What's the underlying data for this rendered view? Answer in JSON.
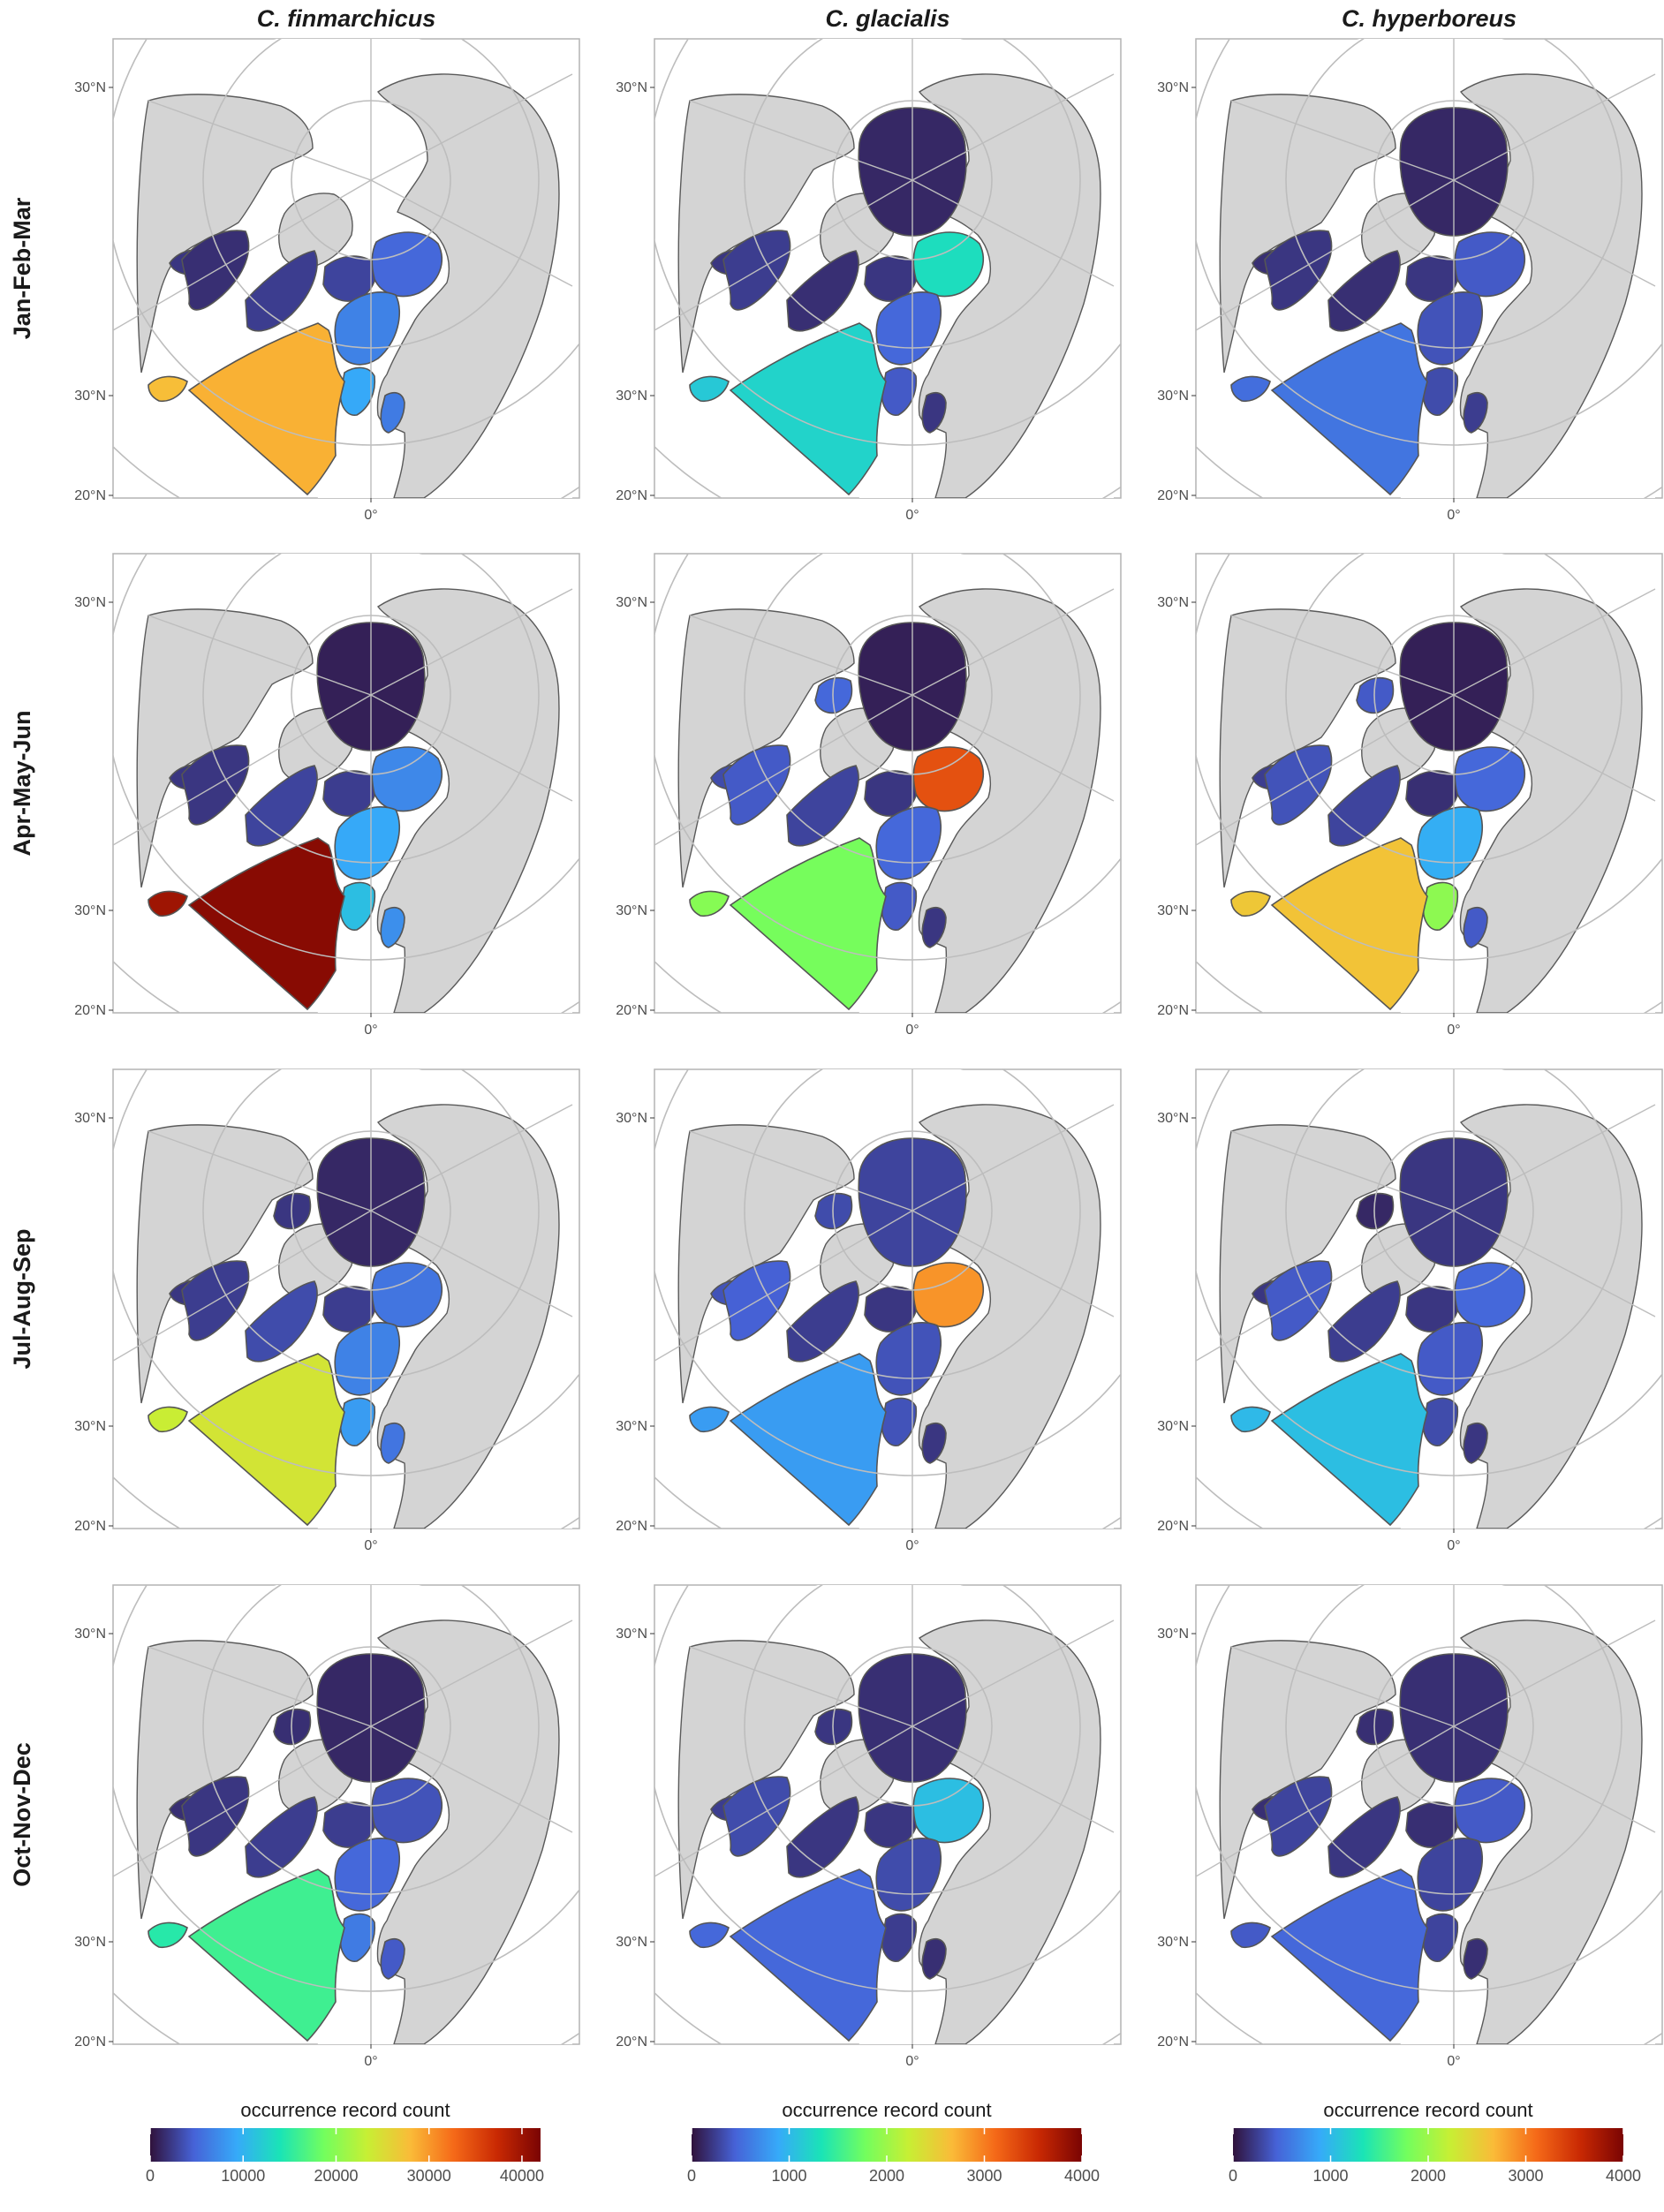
{
  "colors": {
    "land": "#d4d4d4",
    "land_stroke": "#5a5a5a",
    "grid": "#bdbdbd",
    "panel_border": "#b3b3b3",
    "open_water": "#ffffff"
  },
  "species": [
    "C. finmarchicus",
    "C. glacialis",
    "C. hyperboreus"
  ],
  "seasons": [
    "Jan-Feb-Mar",
    "Apr-May-Jun",
    "Jul-Aug-Sep",
    "Oct-Nov-Dec"
  ],
  "axis_labels": {
    "lat_top": "30°N",
    "lat_mid": "30°N",
    "lat_bottom": "20°N",
    "lon": "0°"
  },
  "legends": [
    {
      "title": "occurrence record count",
      "ticks": [
        "0",
        "10000",
        "20000",
        "30000",
        "40000"
      ],
      "max": 42000
    },
    {
      "title": "occurrence record count",
      "ticks": [
        "0",
        "1000",
        "2000",
        "3000",
        "4000"
      ],
      "max": 4000
    },
    {
      "title": "occurrence record count",
      "ticks": [
        "0",
        "1000",
        "2000",
        "3000",
        "4000"
      ],
      "max": 4000
    }
  ],
  "color_scale": [
    "#30123b",
    "#4662d7",
    "#36aaf9",
    "#1ae4b6",
    "#72fe5e",
    "#c7ef34",
    "#fabb38",
    "#f56918",
    "#c92903",
    "#7a0403"
  ],
  "panels": [
    {
      "species": "C. finmarchicus",
      "season": "Jan-Feb-Mar",
      "regions": {
        "central_arctic": null,
        "beaufort": null,
        "canadian_archipelago": null,
        "baffin": 0.05,
        "hudson": 0.04,
        "labrador": 0.06,
        "greenland_sea": 0.07,
        "barents": 0.12,
        "norwegian": 0.16,
        "north_atlantic": 0.68,
        "gulf_st_lawrence": 0.66,
        "north_sea": 0.22,
        "baltic": 0.15
      }
    },
    {
      "species": "C. glacialis",
      "season": "Jan-Feb-Mar",
      "regions": {
        "central_arctic": 0.03,
        "beaufort": null,
        "canadian_archipelago": null,
        "baffin": 0.05,
        "hudson": 0.06,
        "labrador": 0.04,
        "greenland_sea": 0.05,
        "barents": 0.32,
        "norwegian": 0.12,
        "north_atlantic": 0.3,
        "gulf_st_lawrence": 0.28,
        "north_sea": 0.1,
        "baltic": 0.05
      }
    },
    {
      "species": "C. hyperboreus",
      "season": "Jan-Feb-Mar",
      "regions": {
        "central_arctic": 0.03,
        "beaufort": null,
        "canadian_archipelago": null,
        "baffin": 0.04,
        "hudson": 0.05,
        "labrador": 0.04,
        "greenland_sea": 0.05,
        "barents": 0.1,
        "norwegian": 0.09,
        "north_atlantic": 0.14,
        "gulf_st_lawrence": 0.13,
        "north_sea": 0.08,
        "baltic": 0.06
      }
    },
    {
      "species": "C. finmarchicus",
      "season": "Apr-May-Jun",
      "regions": {
        "central_arctic": 0.02,
        "beaufort": null,
        "canadian_archipelago": null,
        "baffin": 0.05,
        "hudson": 0.05,
        "labrador": 0.07,
        "greenland_sea": 0.06,
        "barents": 0.17,
        "norwegian": 0.22,
        "north_atlantic": 0.98,
        "gulf_st_lawrence": 0.95,
        "north_sea": 0.26,
        "baltic": 0.18
      }
    },
    {
      "species": "C. glacialis",
      "season": "Apr-May-Jun",
      "regions": {
        "central_arctic": 0.02,
        "beaufort": 0.12,
        "canadian_archipelago": null,
        "baffin": 0.08,
        "hudson": 0.1,
        "labrador": 0.07,
        "greenland_sea": 0.05,
        "barents": 0.82,
        "norwegian": 0.12,
        "north_atlantic": 0.45,
        "gulf_st_lawrence": 0.47,
        "north_sea": 0.1,
        "baltic": 0.05
      }
    },
    {
      "species": "C. hyperboreus",
      "season": "Apr-May-Jun",
      "regions": {
        "central_arctic": 0.02,
        "beaufort": 0.1,
        "canadian_archipelago": null,
        "baffin": 0.06,
        "hudson": 0.09,
        "labrador": 0.07,
        "greenland_sea": 0.04,
        "barents": 0.12,
        "norwegian": 0.23,
        "north_atlantic": 0.65,
        "gulf_st_lawrence": 0.64,
        "north_sea": 0.48,
        "baltic": 0.1
      }
    },
    {
      "species": "C. finmarchicus",
      "season": "Jul-Aug-Sep",
      "regions": {
        "central_arctic": 0.03,
        "beaufort": 0.05,
        "canadian_archipelago": null,
        "baffin": 0.05,
        "hudson": 0.06,
        "labrador": 0.08,
        "greenland_sea": 0.06,
        "barents": 0.14,
        "norwegian": 0.16,
        "north_atlantic": 0.58,
        "gulf_st_lawrence": 0.56,
        "north_sea": 0.2,
        "baltic": 0.14
      }
    },
    {
      "species": "C. glacialis",
      "season": "Jul-Aug-Sep",
      "regions": {
        "central_arctic": 0.07,
        "beaufort": 0.08,
        "canadian_archipelago": null,
        "baffin": 0.09,
        "hudson": 0.11,
        "labrador": 0.06,
        "greenland_sea": 0.05,
        "barents": 0.72,
        "norwegian": 0.09,
        "north_atlantic": 0.2,
        "gulf_st_lawrence": 0.2,
        "north_sea": 0.09,
        "baltic": 0.05
      }
    },
    {
      "species": "C. hyperboreus",
      "season": "Jul-Aug-Sep",
      "regions": {
        "central_arctic": 0.05,
        "beaufort": 0.03,
        "canadian_archipelago": null,
        "baffin": 0.05,
        "hudson": 0.1,
        "labrador": 0.06,
        "greenland_sea": 0.05,
        "barents": 0.12,
        "norwegian": 0.1,
        "north_atlantic": 0.26,
        "gulf_st_lawrence": 0.25,
        "north_sea": 0.08,
        "baltic": 0.05
      }
    },
    {
      "species": "C. finmarchicus",
      "season": "Oct-Nov-Dec",
      "regions": {
        "central_arctic": 0.03,
        "beaufort": 0.04,
        "canadian_archipelago": null,
        "baffin": 0.04,
        "hudson": 0.05,
        "labrador": 0.06,
        "greenland_sea": 0.06,
        "barents": 0.09,
        "norwegian": 0.12,
        "north_atlantic": 0.38,
        "gulf_st_lawrence": 0.35,
        "north_sea": 0.15,
        "baltic": 0.1
      }
    },
    {
      "species": "C. glacialis",
      "season": "Oct-Nov-Dec",
      "regions": {
        "central_arctic": 0.04,
        "beaufort": 0.05,
        "canadian_archipelago": null,
        "baffin": 0.06,
        "hudson": 0.08,
        "labrador": 0.05,
        "greenland_sea": 0.05,
        "barents": 0.26,
        "norwegian": 0.08,
        "north_atlantic": 0.12,
        "gulf_st_lawrence": 0.12,
        "north_sea": 0.06,
        "baltic": 0.04
      }
    },
    {
      "species": "C. hyperboreus",
      "season": "Oct-Nov-Dec",
      "regions": {
        "central_arctic": 0.04,
        "beaufort": 0.04,
        "canadian_archipelago": null,
        "baffin": 0.04,
        "hudson": 0.07,
        "labrador": 0.05,
        "greenland_sea": 0.04,
        "barents": 0.1,
        "norwegian": 0.07,
        "north_atlantic": 0.12,
        "gulf_st_lawrence": 0.1,
        "north_sea": 0.07,
        "baltic": 0.04
      }
    }
  ]
}
